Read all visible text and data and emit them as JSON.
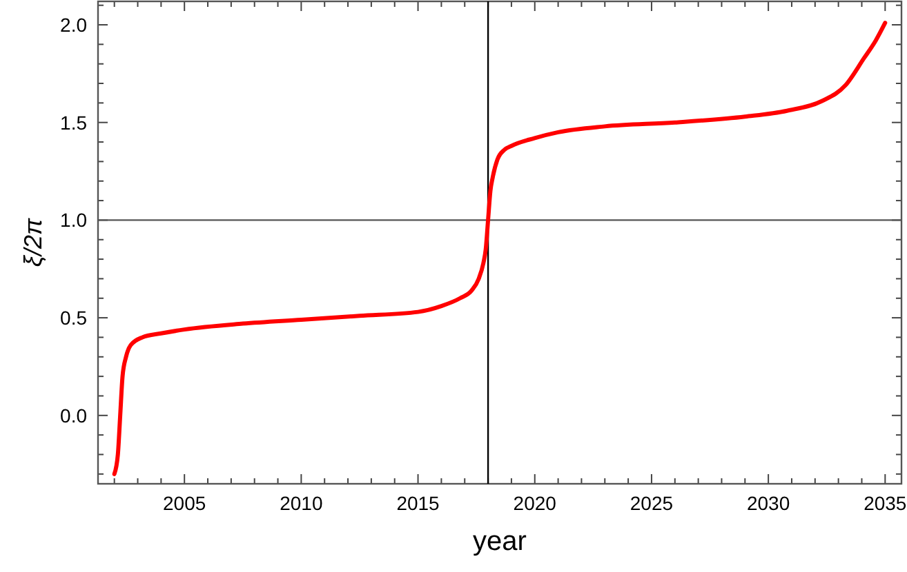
{
  "chart_data": {
    "type": "line",
    "xlabel": "year",
    "ylabel": "ξ/2π",
    "xlim": [
      2001.3,
      2035.7
    ],
    "ylim": [
      -0.35,
      2.12
    ],
    "xticks": [
      {
        "value": 2002,
        "label": null
      },
      {
        "value": 2003,
        "label": null
      },
      {
        "value": 2004,
        "label": null
      },
      2005,
      {
        "value": 2006,
        "label": null
      },
      {
        "value": 2007,
        "label": null
      },
      {
        "value": 2008,
        "label": null
      },
      {
        "value": 2009,
        "label": null
      },
      2010,
      {
        "value": 2011,
        "label": null
      },
      {
        "value": 2012,
        "label": null
      },
      {
        "value": 2013,
        "label": null
      },
      {
        "value": 2014,
        "label": null
      },
      2015,
      {
        "value": 2016,
        "label": null
      },
      {
        "value": 2017,
        "label": null
      },
      {
        "value": 2018,
        "label": null
      },
      {
        "value": 2019,
        "label": null
      },
      2020,
      {
        "value": 2021,
        "label": null
      },
      {
        "value": 2022,
        "label": null
      },
      {
        "value": 2023,
        "label": null
      },
      {
        "value": 2024,
        "label": null
      },
      2025,
      {
        "value": 2026,
        "label": null
      },
      {
        "value": 2027,
        "label": null
      },
      {
        "value": 2028,
        "label": null
      },
      {
        "value": 2029,
        "label": null
      },
      2030,
      {
        "value": 2031,
        "label": null
      },
      {
        "value": 2032,
        "label": null
      },
      {
        "value": 2033,
        "label": null
      },
      {
        "value": 2034,
        "label": null
      },
      2035
    ],
    "yticks": [
      {
        "value": -0.3,
        "label": null
      },
      {
        "value": -0.2,
        "label": null
      },
      {
        "value": -0.1,
        "label": null
      },
      {
        "value": 0,
        "label": "0.0"
      },
      {
        "value": 0.1,
        "label": null
      },
      {
        "value": 0.2,
        "label": null
      },
      {
        "value": 0.3,
        "label": null
      },
      {
        "value": 0.4,
        "label": null
      },
      {
        "value": 0.5,
        "label": "0.5"
      },
      {
        "value": 0.6,
        "label": null
      },
      {
        "value": 0.7,
        "label": null
      },
      {
        "value": 0.8,
        "label": null
      },
      {
        "value": 0.9,
        "label": null
      },
      {
        "value": 1,
        "label": "1.0"
      },
      {
        "value": 1.1,
        "label": null
      },
      {
        "value": 1.2,
        "label": null
      },
      {
        "value": 1.3,
        "label": null
      },
      {
        "value": 1.4,
        "label": null
      },
      {
        "value": 1.5,
        "label": "1.5"
      },
      {
        "value": 1.6,
        "label": null
      },
      {
        "value": 1.7,
        "label": null
      },
      {
        "value": 1.8,
        "label": null
      },
      {
        "value": 1.9,
        "label": null
      },
      {
        "value": 2,
        "label": "2.0"
      },
      {
        "value": 2.1,
        "label": null
      }
    ],
    "grid": false,
    "marker": "none",
    "line_style": "solid",
    "ref_lines": [
      {
        "axis": "y",
        "value": 1,
        "color": "#555555"
      },
      {
        "axis": "x",
        "value": 2018,
        "color": "#000000"
      }
    ],
    "series": [
      {
        "color": "#ff0000",
        "x": [
          2002.0,
          2002.15,
          2002.25,
          2002.35,
          2002.5,
          2002.7,
          2003.2,
          2004,
          2005,
          2007.5,
          2010,
          2012.5,
          2015,
          2016,
          2016.8,
          2017.3,
          2017.6,
          2017.8,
          2017.9,
          2018,
          2018.1,
          2018.2,
          2018.4,
          2018.7,
          2019,
          2020,
          2021,
          2023,
          2026,
          2029,
          2030.8,
          2032.3,
          2033.3,
          2034.1,
          2034.6,
          2035
        ],
        "values": [
          -0.3,
          -0.2,
          0.0,
          0.2,
          0.3,
          0.36,
          0.4,
          0.42,
          0.44,
          0.47,
          0.49,
          0.51,
          0.53,
          0.56,
          0.6,
          0.64,
          0.7,
          0.78,
          0.85,
          1.0,
          1.15,
          1.22,
          1.31,
          1.36,
          1.38,
          1.42,
          1.45,
          1.48,
          1.5,
          1.53,
          1.56,
          1.61,
          1.69,
          1.83,
          1.92,
          2.01
        ]
      }
    ]
  }
}
